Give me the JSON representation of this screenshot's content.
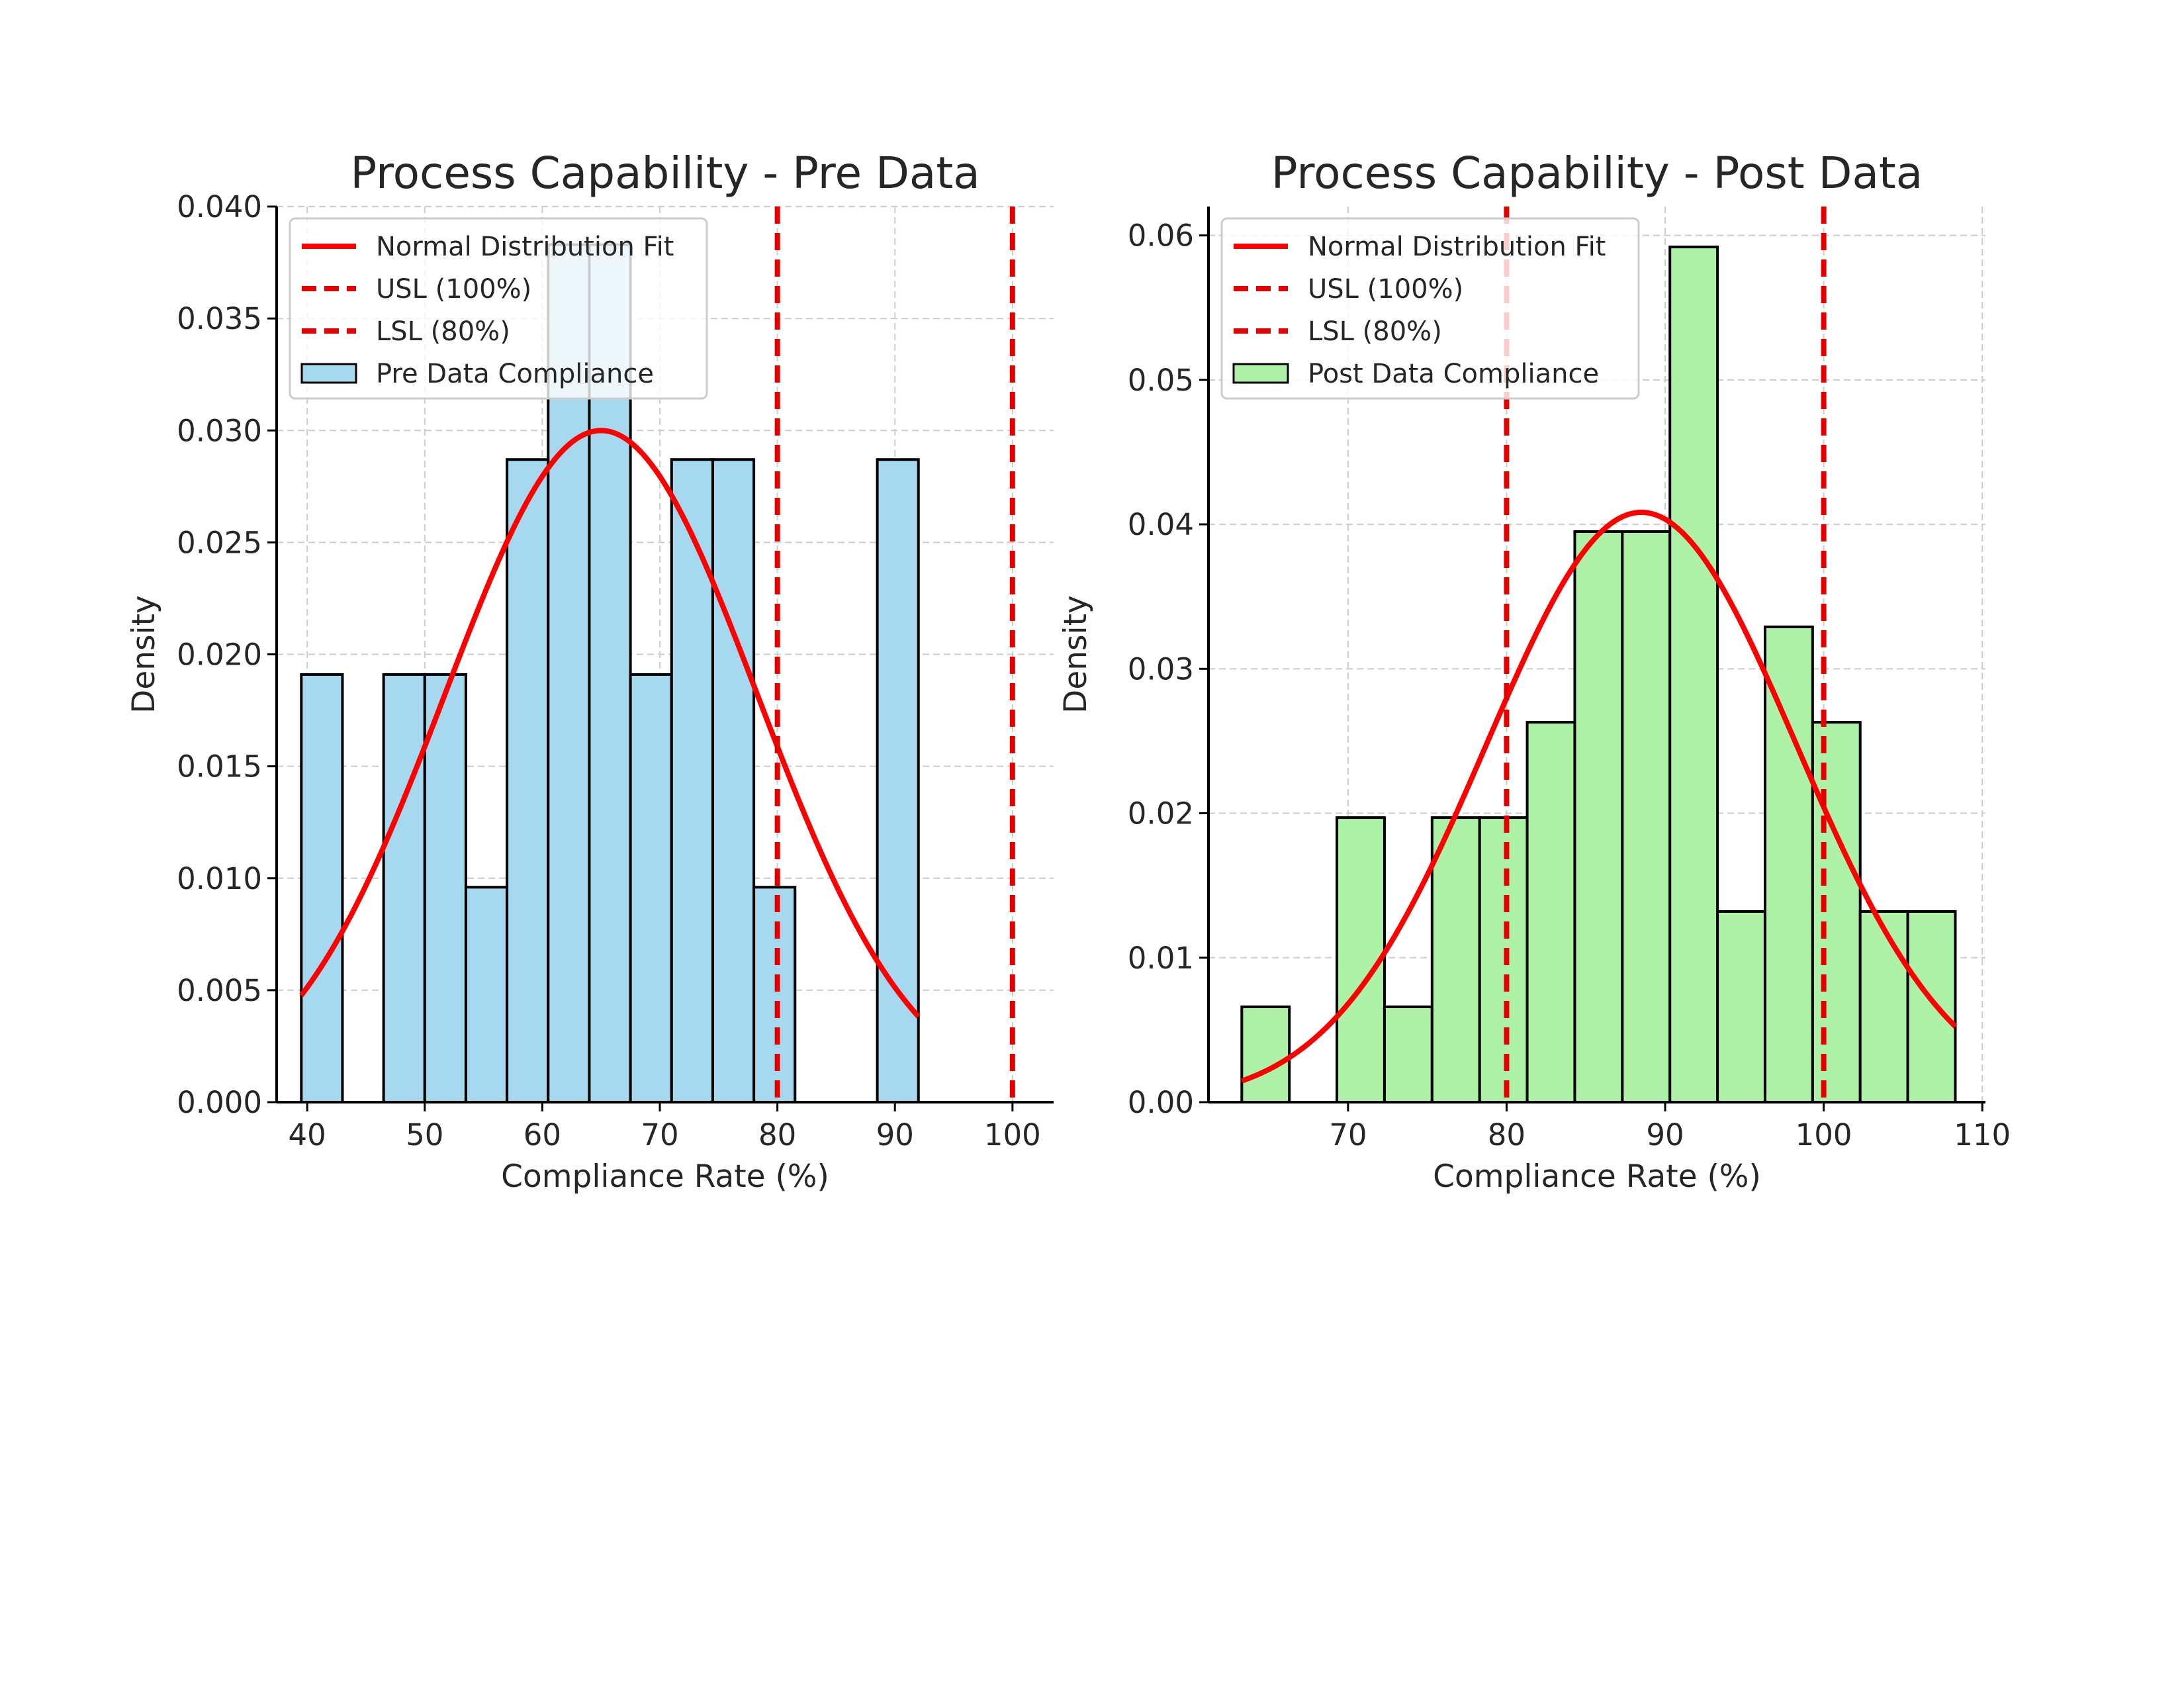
{
  "colors": {
    "pre_bar": "#a6d8ef",
    "post_bar": "#aef2a8",
    "bar_edge": "#000000",
    "fit_line": "#ff0000",
    "spec_line": "#e60000",
    "grid": "#cccccc",
    "axis": "#000000"
  },
  "chart_data": [
    {
      "type": "bar",
      "title": "Process Capability - Pre Data",
      "xlabel": "Compliance Rate (%)",
      "ylabel": "Density",
      "xlim": [
        37.4,
        103.5
      ],
      "ylim": [
        0,
        0.04
      ],
      "xticks": [
        40,
        50,
        60,
        70,
        80,
        90,
        100
      ],
      "xtick_labels": [
        "40",
        "50",
        "60",
        "70",
        "80",
        "90",
        "100"
      ],
      "yticks": [
        0,
        0.005,
        0.01,
        0.015,
        0.02,
        0.025,
        0.03,
        0.035,
        0.04
      ],
      "ytick_labels": [
        "0.000",
        "0.005",
        "0.010",
        "0.015",
        "0.020",
        "0.025",
        "0.030",
        "0.035",
        "0.040"
      ],
      "grid": true,
      "legend_position": "upper-left",
      "legend": [
        {
          "label": "Normal Distribution Fit",
          "kind": "solid"
        },
        {
          "label": "USL (100%)",
          "kind": "dashed"
        },
        {
          "label": "LSL (80%)",
          "kind": "dashed"
        },
        {
          "label": "Pre Data Compliance",
          "kind": "patch"
        }
      ],
      "bins": [
        {
          "x0": 39.5,
          "x1": 43.0,
          "density": 0.0191
        },
        {
          "x0": 43.0,
          "x1": 46.5,
          "density": 0.0
        },
        {
          "x0": 46.5,
          "x1": 50.0,
          "density": 0.0191
        },
        {
          "x0": 50.0,
          "x1": 53.5,
          "density": 0.0191
        },
        {
          "x0": 53.5,
          "x1": 57.0,
          "density": 0.0096
        },
        {
          "x0": 57.0,
          "x1": 60.5,
          "density": 0.0287
        },
        {
          "x0": 60.5,
          "x1": 64.0,
          "density": 0.0383
        },
        {
          "x0": 64.0,
          "x1": 67.5,
          "density": 0.0383
        },
        {
          "x0": 67.5,
          "x1": 71.0,
          "density": 0.0191
        },
        {
          "x0": 71.0,
          "x1": 74.5,
          "density": 0.0287
        },
        {
          "x0": 74.5,
          "x1": 78.0,
          "density": 0.0287
        },
        {
          "x0": 78.0,
          "x1": 81.5,
          "density": 0.0096
        },
        {
          "x0": 81.5,
          "x1": 85.0,
          "density": 0.0
        },
        {
          "x0": 85.0,
          "x1": 88.5,
          "density": 0.0
        },
        {
          "x0": 88.5,
          "x1": 92.0,
          "density": 0.0287
        }
      ],
      "normal_fit": {
        "mean": 65.0,
        "sd": 13.3,
        "x_range": [
          39.5,
          92.0
        ]
      },
      "spec_lines": [
        80,
        100
      ]
    },
    {
      "type": "bar",
      "title": "Process Capability - Post Data",
      "xlabel": "Compliance Rate (%)",
      "ylabel": "Density",
      "xlim": [
        61.2,
        110.2
      ],
      "ylim": [
        0,
        0.062
      ],
      "xticks": [
        70,
        80,
        90,
        100,
        110
      ],
      "xtick_labels": [
        "70",
        "80",
        "90",
        "100",
        "110"
      ],
      "yticks": [
        0,
        0.01,
        0.02,
        0.03,
        0.04,
        0.05,
        0.06
      ],
      "ytick_labels": [
        "0.00",
        "0.01",
        "0.02",
        "0.03",
        "0.04",
        "0.05",
        "0.06"
      ],
      "grid": true,
      "legend_position": "upper-left",
      "legend": [
        {
          "label": "Normal Distribution Fit",
          "kind": "solid"
        },
        {
          "label": "USL (100%)",
          "kind": "dashed"
        },
        {
          "label": "LSL (80%)",
          "kind": "dashed"
        },
        {
          "label": "Post Data Compliance",
          "kind": "patch"
        }
      ],
      "bins": [
        {
          "x0": 63.3,
          "x1": 66.3,
          "density": 0.0066
        },
        {
          "x0": 66.3,
          "x1": 69.3,
          "density": 0.0
        },
        {
          "x0": 69.3,
          "x1": 72.3,
          "density": 0.0197
        },
        {
          "x0": 72.3,
          "x1": 75.3,
          "density": 0.0066
        },
        {
          "x0": 75.3,
          "x1": 78.3,
          "density": 0.0197
        },
        {
          "x0": 78.3,
          "x1": 81.3,
          "density": 0.0197
        },
        {
          "x0": 81.3,
          "x1": 84.3,
          "density": 0.0263
        },
        {
          "x0": 84.3,
          "x1": 87.3,
          "density": 0.0395
        },
        {
          "x0": 87.3,
          "x1": 90.3,
          "density": 0.0395
        },
        {
          "x0": 90.3,
          "x1": 93.3,
          "density": 0.0592
        },
        {
          "x0": 93.3,
          "x1": 96.3,
          "density": 0.0132
        },
        {
          "x0": 96.3,
          "x1": 99.3,
          "density": 0.0329
        },
        {
          "x0": 99.3,
          "x1": 102.3,
          "density": 0.0263
        },
        {
          "x0": 102.3,
          "x1": 105.3,
          "density": 0.0132
        },
        {
          "x0": 105.3,
          "x1": 108.3,
          "density": 0.0132
        }
      ],
      "normal_fit": {
        "mean": 88.5,
        "sd": 9.77,
        "x_range": [
          63.3,
          108.3
        ]
      },
      "spec_lines": [
        80,
        100
      ]
    }
  ]
}
